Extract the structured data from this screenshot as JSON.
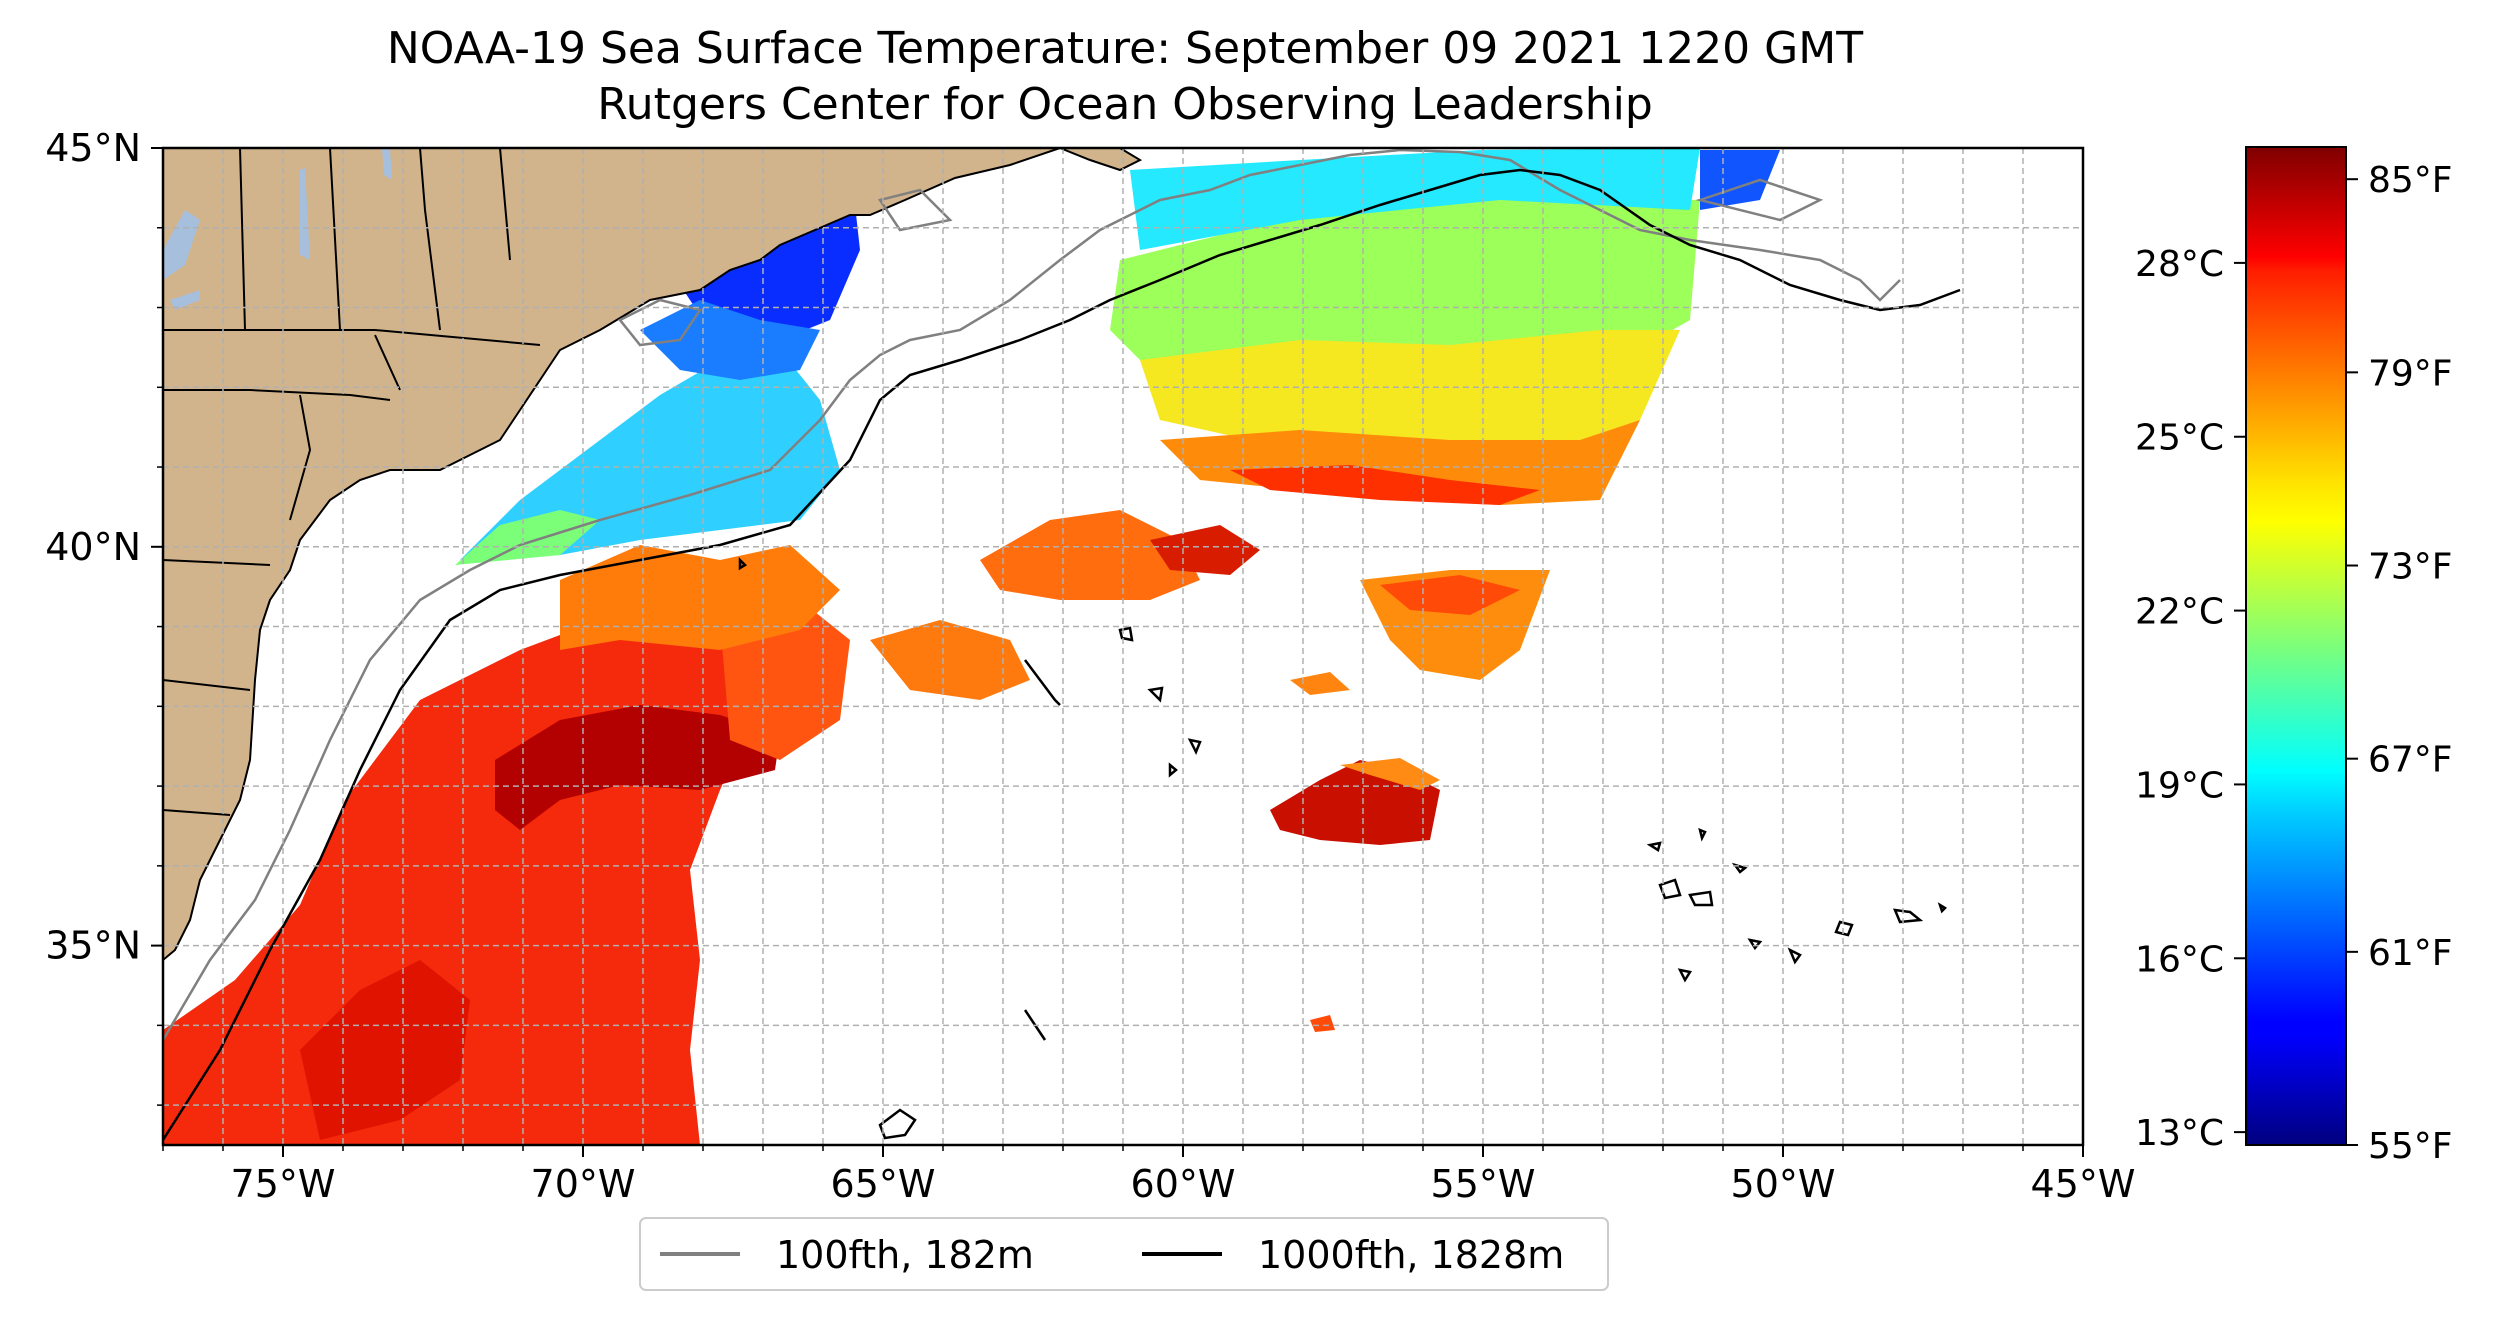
{
  "title": "NOAA-19 Sea Surface Temperature: September 09 2021 1220 GMT",
  "subtitle": "Rutgers Center for Ocean Observing Leadership",
  "map": {
    "projection": "plate-carree",
    "lon_range": [
      -77,
      -45
    ],
    "lat_range": [
      32.5,
      45
    ],
    "lon_ticks": [
      -75,
      -70,
      -65,
      -60,
      -55,
      -50,
      -45
    ],
    "lon_tick_labels": [
      "75°W",
      "70°W",
      "65°W",
      "60°W",
      "55°W",
      "50°W",
      "45°W"
    ],
    "lat_ticks": [
      35,
      40,
      45
    ],
    "lat_tick_labels": [
      "35°N",
      "40°N",
      "45°N"
    ],
    "gridlines": true,
    "gridline_style": "dashed",
    "land_color": "#d2b48c",
    "lake_color": "#a5bfdd"
  },
  "colorbar": {
    "colormap": "jet",
    "range_f": [
      55,
      86
    ],
    "f_labels": [
      "85°F",
      "79°F",
      "73°F",
      "67°F",
      "61°F",
      "55°F"
    ],
    "f_values": [
      85,
      79,
      73,
      67,
      61,
      55
    ],
    "c_labels": [
      "28°C",
      "25°C",
      "22°C",
      "19°C",
      "16°C",
      "13°C"
    ],
    "c_values": [
      28,
      25,
      22,
      19,
      16,
      13
    ]
  },
  "legend": {
    "placement": "bottom-center",
    "items": [
      {
        "label": "100fth, 182m",
        "color": "#808080"
      },
      {
        "label": "1000fth, 1828m",
        "color": "#000000"
      }
    ]
  }
}
